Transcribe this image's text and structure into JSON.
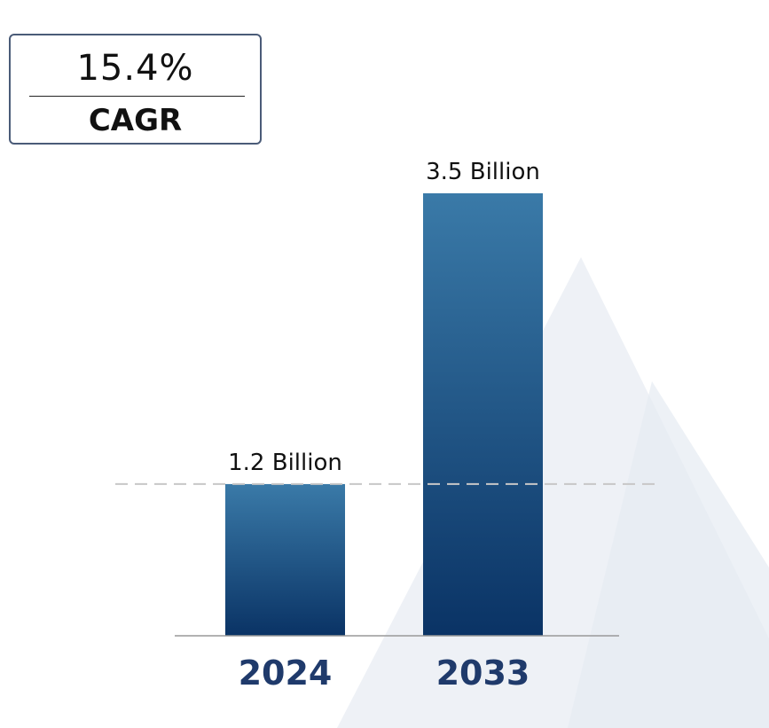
{
  "summary": {
    "cagr_value": "15.4%",
    "cagr_label": "CAGR"
  },
  "chart_data": {
    "type": "bar",
    "categories": [
      "2024",
      "2033"
    ],
    "values": [
      1.2,
      3.5
    ],
    "data_labels": [
      "1.2 Billion",
      "3.5 Billion"
    ],
    "unit": "Billion",
    "title": "",
    "xlabel": "",
    "ylabel": "",
    "ylim": [
      0,
      3.5
    ],
    "reference_line_value": 1.2,
    "grid": false,
    "legend": "none"
  },
  "colors": {
    "bar_top": "#3a7aa8",
    "bar_bottom": "#0a3365",
    "category_label": "#1f3a6b",
    "reference_line": "#c7c7c7",
    "watermark": "#eef1f6",
    "box_border": "#4a5b78"
  }
}
